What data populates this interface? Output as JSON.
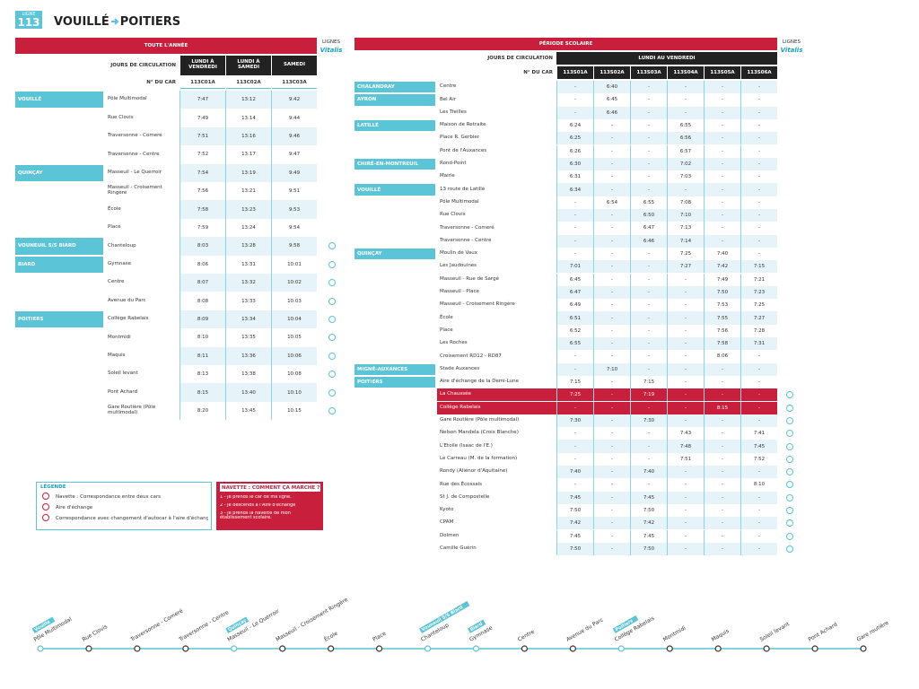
{
  "header": {
    "line_label": "LIGNE",
    "line_number": "113",
    "origin": "VOUILLÉ",
    "destination": "POITIERS"
  },
  "brand": {
    "label": "LIGNES",
    "logo": "Vitalis"
  },
  "year_table": {
    "title": "TOUTE L'ANNÉE",
    "days_label": "JOURS DE CIRCULATION",
    "days": [
      "LUNDI À VENDREDI",
      "LUNDI À SAMEDI",
      "SAMEDI"
    ],
    "car_label": "N° DU CAR",
    "cars": [
      "113C01A",
      "113C02A",
      "113C03A"
    ],
    "groups": [
      {
        "name": "VOUILLÉ",
        "stops": [
          {
            "name": "Pôle Multimodal",
            "times": [
              "7:47",
              "13:12",
              "9:42"
            ]
          },
          {
            "name": "Rue Clovis",
            "times": [
              "7:49",
              "13:14",
              "9:44"
            ]
          },
          {
            "name": "Traversonne - Comeré",
            "times": [
              "7:51",
              "13:16",
              "9:46"
            ]
          },
          {
            "name": "Traversonne - Centre",
            "times": [
              "7:52",
              "13:17",
              "9:47"
            ]
          }
        ]
      },
      {
        "name": "QUINÇAY",
        "stops": [
          {
            "name": "Masseuil - Le Querroir",
            "times": [
              "7:54",
              "13:19",
              "9:49"
            ]
          },
          {
            "name": "Masseuil - Croisement Ringère",
            "times": [
              "7:56",
              "13:21",
              "9:51"
            ]
          },
          {
            "name": "École",
            "times": [
              "7:58",
              "13:23",
              "9:53"
            ]
          },
          {
            "name": "Place",
            "times": [
              "7:59",
              "13:24",
              "9:54"
            ]
          }
        ]
      },
      {
        "name": "VOUNEUIL S/S BIARD",
        "stops": [
          {
            "name": "Chanteloup",
            "times": [
              "8:03",
              "13:28",
              "9:58"
            ]
          }
        ]
      },
      {
        "name": "BIARD",
        "stops": [
          {
            "name": "Gymnase",
            "times": [
              "8:06",
              "13:31",
              "10:01"
            ]
          },
          {
            "name": "Centre",
            "times": [
              "8:07",
              "13:32",
              "10:02"
            ]
          },
          {
            "name": "Avenue du Parc",
            "times": [
              "8:08",
              "13:33",
              "10:03"
            ]
          }
        ]
      },
      {
        "name": "POITIERS",
        "stops": [
          {
            "name": "Collège Rabelais",
            "times": [
              "8:09",
              "13:34",
              "10:04"
            ]
          },
          {
            "name": "Montmidi",
            "times": [
              "8:10",
              "13:35",
              "10:05"
            ]
          },
          {
            "name": "Maquis",
            "times": [
              "8:11",
              "13:36",
              "10:06"
            ]
          },
          {
            "name": "Soleil levant",
            "times": [
              "8:13",
              "13:38",
              "10:08"
            ]
          },
          {
            "name": "Pont Achard",
            "times": [
              "8:15",
              "13:40",
              "10:10"
            ]
          },
          {
            "name": "Gare Routière (Pôle multimodal)",
            "times": [
              "8:20",
              "13:45",
              "10:15"
            ]
          }
        ]
      }
    ]
  },
  "school_table": {
    "title": "PÉRIODE SCOLAIRE",
    "days_label": "JOURS DE CIRCULATION",
    "days": "LUNDI AU VENDREDI",
    "car_label": "N° DU CAR",
    "cars": [
      "113S01A",
      "113S02A",
      "113S03A",
      "113S04A",
      "113S05A",
      "113S06A"
    ],
    "groups": [
      {
        "name": "CHALANDRAY",
        "stops": [
          {
            "name": "Centre",
            "times": [
              "-",
              "6:40",
              "-",
              "-",
              "-",
              "-"
            ]
          }
        ]
      },
      {
        "name": "AYRON",
        "stops": [
          {
            "name": "Bel Air",
            "times": [
              "-",
              "6:45",
              "-",
              "-",
              "-",
              "-"
            ]
          },
          {
            "name": "Les Treilles",
            "times": [
              "-",
              "6:46",
              "-",
              "-",
              "-",
              "-"
            ]
          }
        ]
      },
      {
        "name": "LATILLÉ",
        "stops": [
          {
            "name": "Maison de Retraite",
            "times": [
              "6:24",
              "-",
              "-",
              "6:55",
              "-",
              "-"
            ]
          },
          {
            "name": "Place R. Gerbier",
            "times": [
              "6:25",
              "-",
              "-",
              "6:56",
              "-",
              "-"
            ]
          },
          {
            "name": "Pont de l'Auxances",
            "times": [
              "6:26",
              "-",
              "-",
              "6:57",
              "-",
              "-"
            ]
          }
        ]
      },
      {
        "name": "CHIRÉ-EN-MONTREUIL",
        "stops": [
          {
            "name": "Rond-Point",
            "times": [
              "6:30",
              "-",
              "-",
              "7:02",
              "-",
              "-"
            ]
          },
          {
            "name": "Mairie",
            "times": [
              "6:31",
              "-",
              "-",
              "7:03",
              "-",
              "-"
            ]
          }
        ]
      },
      {
        "name": "VOUILLÉ",
        "stops": [
          {
            "name": "13 route de Latillé",
            "times": [
              "6:34",
              "-",
              "-",
              "-",
              "-",
              "-"
            ]
          },
          {
            "name": "Pôle Multimodal",
            "times": [
              "-",
              "6:54",
              "6:55",
              "7:08",
              "-",
              "-"
            ]
          },
          {
            "name": "Rue Clovis",
            "times": [
              "-",
              "-",
              "6:50",
              "7:10",
              "-",
              "-"
            ]
          },
          {
            "name": "Traversonne - Comeré",
            "times": [
              "-",
              "-",
              "6:47",
              "7:13",
              "-",
              "-"
            ]
          },
          {
            "name": "Traversonne - Centre",
            "times": [
              "-",
              "-",
              "6:46",
              "7:14",
              "-",
              "-"
            ]
          }
        ]
      },
      {
        "name": "QUINÇAY",
        "stops": [
          {
            "name": "Moulin de Vaux",
            "times": [
              "-",
              "-",
              "-",
              "7:25",
              "7:40",
              "-"
            ]
          },
          {
            "name": "Les Jaudouines",
            "times": [
              "7:01",
              "-",
              "-",
              "7:27",
              "7:42",
              "7:15"
            ]
          },
          {
            "name": "Masseuil - Rue de Sargé",
            "times": [
              "6:45",
              "-",
              "-",
              "-",
              "7:49",
              "7:21"
            ]
          },
          {
            "name": "Masseuil - Place",
            "times": [
              "6:47",
              "-",
              "-",
              "-",
              "7:50",
              "7:23"
            ]
          },
          {
            "name": "Masseuil - Croisement Ringère",
            "times": [
              "6:49",
              "-",
              "-",
              "-",
              "7:53",
              "7:25"
            ]
          },
          {
            "name": "École",
            "times": [
              "6:51",
              "-",
              "-",
              "-",
              "7:55",
              "7:27"
            ]
          },
          {
            "name": "Place",
            "times": [
              "6:52",
              "-",
              "-",
              "-",
              "7:56",
              "7:28"
            ]
          },
          {
            "name": "Les Roches",
            "times": [
              "6:55",
              "-",
              "-",
              "-",
              "7:58",
              "7:31"
            ]
          },
          {
            "name": "Croisement RD12 - RD87",
            "times": [
              "-",
              "-",
              "-",
              "-",
              "8:06",
              "-"
            ]
          }
        ]
      },
      {
        "name": "MIGNÉ-AUXANCES",
        "stops": [
          {
            "name": "Stade Auxances",
            "times": [
              "-",
              "7:10",
              "-",
              "-",
              "-",
              "-"
            ]
          }
        ]
      },
      {
        "name": "POITIERS",
        "stops": [
          {
            "name": "Aire d'échange de la Demi-Lune",
            "times": [
              "7:15",
              "-",
              "7:15",
              "-",
              "-",
              "-"
            ]
          },
          {
            "name": "La Chaussée",
            "times": [
              "7:25",
              "-",
              "7:19",
              "-",
              "-",
              "-"
            ]
          },
          {
            "name": "Collège Rabelais",
            "times": [
              "-",
              "-",
              "-",
              "-",
              "8:15",
              "-"
            ]
          },
          {
            "name": "Gare Routière (Pôle multimodal)",
            "times": [
              "7:30",
              "-",
              "7:30",
              "-",
              "-",
              "-"
            ]
          },
          {
            "name": "Nelson Mandela (Croix Blanche)",
            "times": [
              "-",
              "-",
              "-",
              "7:43",
              "-",
              "7:41"
            ]
          },
          {
            "name": "L'Etoile (Isaac de l'E.)",
            "times": [
              "-",
              "-",
              "-",
              "7:48",
              "-",
              "7:45"
            ]
          },
          {
            "name": "Le Carreau (M. de la formation)",
            "times": [
              "-",
              "-",
              "-",
              "7:51",
              "-",
              "7:52"
            ]
          },
          {
            "name": "Rondy (Aliénor d'Aquitaine)",
            "times": [
              "7:40",
              "-",
              "7:40",
              "-",
              "-",
              "-"
            ]
          },
          {
            "name": "Rue des Écossais",
            "times": [
              "-",
              "-",
              "-",
              "-",
              "-",
              "8:10"
            ]
          },
          {
            "name": "St J. de Compostelle",
            "times": [
              "7:45",
              "-",
              "7:45",
              "-",
              "-",
              "-"
            ]
          },
          {
            "name": "Kyoto",
            "times": [
              "7:50",
              "-",
              "7:50",
              "-",
              "-",
              "-"
            ]
          },
          {
            "name": "CPAM",
            "times": [
              "7:42",
              "-",
              "7:42",
              "-",
              "-",
              "-"
            ]
          },
          {
            "name": "Dolmen",
            "times": [
              "7:45",
              "-",
              "7:45",
              "-",
              "-",
              "-"
            ]
          },
          {
            "name": "Camille Guérin",
            "times": [
              "7:50",
              "-",
              "7:50",
              "-",
              "-",
              "-"
            ]
          }
        ]
      }
    ]
  },
  "legend": {
    "title": "LÉGENDE",
    "items": [
      "Navette : Correspondance entre deux cars",
      "Aire d'échange",
      "Correspondance avec changement d'autocar à l'aire d'échange"
    ]
  },
  "shuttle": {
    "title": "NAVETTE : COMMENT ÇA MARCHE ?",
    "steps": [
      "1 - Je prends le car de ma ligne.",
      "2 - Je descends à l'Aire d'échange",
      "3 - Je prends la navette de mon établissement scolaire."
    ]
  },
  "route": [
    {
      "tag": "Vouillé",
      "stop": "Pôle Multimodal"
    },
    {
      "stop": "Rue Clovis"
    },
    {
      "stop": "Traversonne - Comeré"
    },
    {
      "stop": "Traversonne - Centre"
    },
    {
      "tag": "Quinçay",
      "stop": "Masseuil - Le Querroir"
    },
    {
      "stop": "Masseuil - Croisement Ringère"
    },
    {
      "stop": "École"
    },
    {
      "stop": "Place"
    },
    {
      "tag": "Vouneuil S/S Biard",
      "stop": "Chanteloup"
    },
    {
      "tag": "Biard",
      "stop": "Gymnase"
    },
    {
      "stop": "Centre"
    },
    {
      "stop": "Avenue du Parc"
    },
    {
      "tag": "Poitiers",
      "stop": "Collège Rabelais"
    },
    {
      "stop": "Montmidi"
    },
    {
      "stop": "Maquis"
    },
    {
      "stop": "Soleil levant"
    },
    {
      "stop": "Pont Achard"
    },
    {
      "stop": "Gare routière"
    }
  ]
}
